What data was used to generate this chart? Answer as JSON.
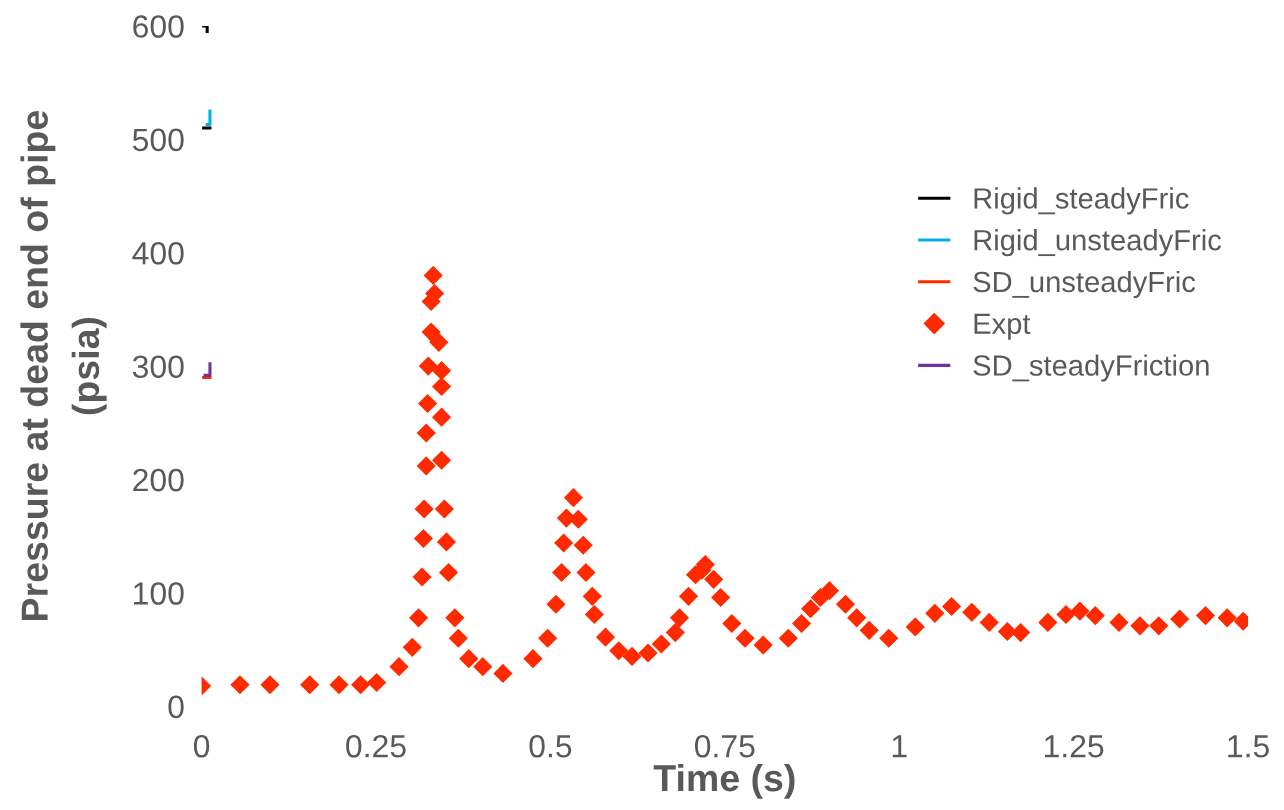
{
  "chart_data": {
    "type": "line",
    "xlabel": "Time (s)",
    "ylabel": "Pressure at dead end of pipe\n(psia)",
    "xlim": [
      0,
      1.5
    ],
    "xticks": [
      0,
      {
        "value": 0.25,
        "label": "0.25"
      },
      {
        "value": 0.5,
        "label": "0.5"
      },
      {
        "value": 0.75,
        "label": "0.75"
      },
      1,
      {
        "value": 1.25,
        "label": "1.25"
      },
      {
        "value": 1.5,
        "label": "1.5"
      }
    ],
    "ylim": [
      0,
      600
    ],
    "yticks": [
      0,
      100,
      200,
      300,
      400,
      500,
      600
    ],
    "grid": false,
    "legend": "right",
    "series": [
      {
        "name": "Rigid_steadyFric",
        "color": "#000000",
        "x": [
          0.003,
          0.012
        ],
        "values": [
          510,
          510
        ]
      },
      {
        "color": "#000000",
        "x": [
          0.003,
          0.008,
          0.008
        ],
        "values": [
          600,
          600,
          595
        ]
      },
      {
        "name": "Rigid_unsteadyFric",
        "color": "#00b0f0",
        "x": [
          0.008,
          0.012,
          0.012
        ],
        "values": [
          513,
          513,
          525
        ]
      },
      {
        "name": "SD_unsteadyFric",
        "color": "#ff2a00",
        "x": [
          0.003,
          0.012
        ],
        "values": [
          290,
          290
        ]
      },
      {
        "name": "Expt",
        "type": "scatter",
        "marker": "diamond",
        "color": "#ff2a00",
        "x": [
          0,
          0.055,
          0.098,
          0.155,
          0.197,
          0.228,
          0.251,
          0.283,
          0.302,
          0.311,
          0.316,
          0.318,
          0.319,
          0.322,
          0.322,
          0.324,
          0.325,
          0.329,
          0.334,
          0.332,
          0.329,
          0.34,
          0.344,
          0.344,
          0.344,
          0.344,
          0.348,
          0.351,
          0.354,
          0.363,
          0.368,
          0.383,
          0.403,
          0.432,
          0.475,
          0.496,
          0.508,
          0.516,
          0.519,
          0.523,
          0.533,
          0.54,
          0.547,
          0.551,
          0.56,
          0.563,
          0.579,
          0.598,
          0.617,
          0.64,
          0.659,
          0.679,
          0.685,
          0.698,
          0.708,
          0.717,
          0.722,
          0.734,
          0.744,
          0.76,
          0.779,
          0.805,
          0.841,
          0.86,
          0.873,
          0.887,
          0.9,
          0.923,
          0.939,
          0.957,
          0.985,
          1.023,
          1.051,
          1.075,
          1.104,
          1.129,
          1.155,
          1.174,
          1.213,
          1.239,
          1.259,
          1.281,
          1.315,
          1.345,
          1.372,
          1.402,
          1.439,
          1.47,
          1.493
        ],
        "values": [
          18,
          19,
          19,
          19,
          19,
          19,
          21,
          35,
          52,
          78,
          114,
          148,
          174,
          212,
          241,
          267,
          300,
          330,
          364,
          380,
          357,
          321,
          296,
          282,
          255,
          217,
          174,
          145,
          118,
          78,
          60,
          42,
          35,
          29,
          42,
          60,
          90,
          118,
          144,
          166,
          184,
          165,
          142,
          118,
          97,
          81,
          61,
          49,
          44,
          47,
          55,
          65,
          78,
          97,
          116,
          120,
          125,
          112,
          96,
          73,
          60,
          54,
          60,
          73,
          86,
          96,
          102,
          90,
          78,
          67,
          60,
          70,
          82,
          88,
          83,
          74,
          66,
          65,
          74,
          81,
          84,
          80,
          74,
          71,
          71,
          77,
          80,
          78,
          75
        ]
      },
      {
        "name": "SD_steadyFriction",
        "color": "#7030a0",
        "x": [
          0.005,
          0.012,
          0.012
        ],
        "values": [
          292,
          292,
          302
        ]
      }
    ]
  }
}
